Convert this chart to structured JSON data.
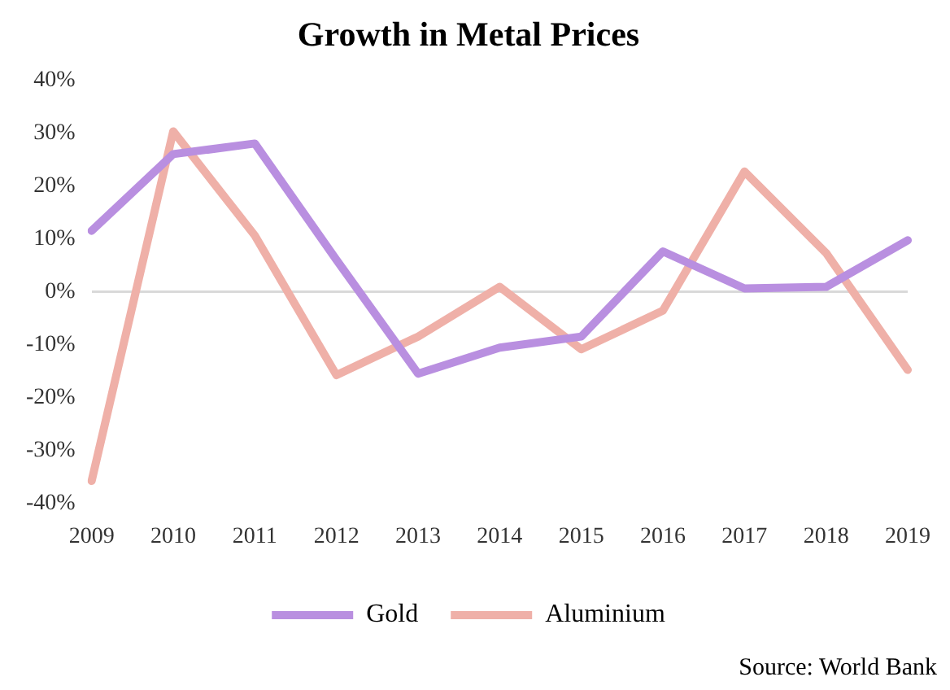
{
  "chart_data": {
    "type": "line",
    "title": "Growth in Metal Prices",
    "categories": [
      "2009",
      "2010",
      "2011",
      "2012",
      "2013",
      "2014",
      "2015",
      "2016",
      "2017",
      "2018",
      "2019"
    ],
    "series": [
      {
        "name": "Gold",
        "color": "#b98fe0",
        "values": [
          11.5,
          26,
          28,
          6,
          -15.5,
          -10.6,
          -8.5,
          7.6,
          0.6,
          0.9,
          9.7
        ]
      },
      {
        "name": "Aluminium",
        "color": "#efb0a8",
        "values": [
          -35.8,
          30.3,
          10.6,
          -15.8,
          -8.5,
          0.9,
          -10.9,
          -3.6,
          22.7,
          7.3,
          -14.8
        ]
      }
    ],
    "ylim": [
      -40,
      40
    ],
    "yticks": [
      {
        "value": -40,
        "label": "-40%"
      },
      {
        "value": -30,
        "label": "-30%"
      },
      {
        "value": -20,
        "label": "-20%"
      },
      {
        "value": -10,
        "label": "-10%"
      },
      {
        "value": 0,
        "label": "0%"
      },
      {
        "value": 10,
        "label": "10%"
      },
      {
        "value": 20,
        "label": "20%"
      },
      {
        "value": 30,
        "label": "30%"
      },
      {
        "value": 40,
        "label": "40%"
      }
    ],
    "legend": "bottom",
    "marker": "none",
    "line_style": "solid",
    "annotations": [
      "Source: World Bank"
    ]
  }
}
